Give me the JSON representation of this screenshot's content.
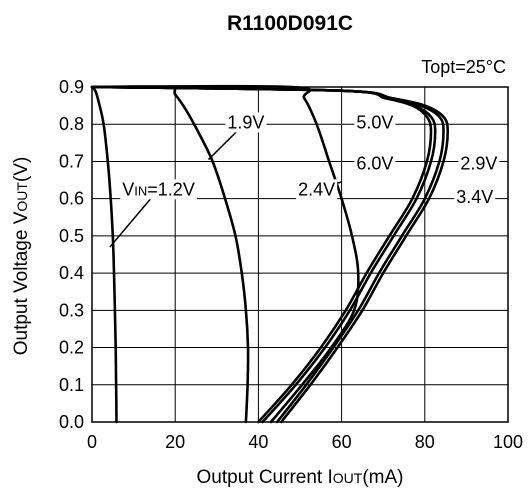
{
  "chart_data": {
    "type": "line",
    "title": "R1100D091C",
    "annotation": "Topt=25°C",
    "xlabel": {
      "main": "Output Current I",
      "sub": "OUT",
      "tail": "(mA)"
    },
    "ylabel": {
      "main": "Output Voltage V",
      "sub": "OUT",
      "tail": "(V)"
    },
    "xlim": [
      0,
      100
    ],
    "ylim": [
      0,
      0.9
    ],
    "xticks": [
      "0",
      "20",
      "40",
      "60",
      "80",
      "100"
    ],
    "yticks": [
      "0.0",
      "0.1",
      "0.2",
      "0.3",
      "0.4",
      "0.5",
      "0.6",
      "0.7",
      "0.8",
      "0.9"
    ],
    "grid": true,
    "series": [
      {
        "name": "VIN=1.2V",
        "label_main": "V",
        "label_sub": "IN",
        "label_tail": "=1.2V",
        "points": [
          [
            0,
            0.9
          ],
          [
            0.8,
            0.89
          ],
          [
            1.6,
            0.86
          ],
          [
            2.8,
            0.8
          ],
          [
            3.8,
            0.7
          ],
          [
            4.5,
            0.6
          ],
          [
            5.0,
            0.5
          ],
          [
            5.3,
            0.4
          ],
          [
            5.5,
            0.3
          ],
          [
            5.7,
            0.2
          ],
          [
            5.8,
            0.1
          ],
          [
            5.9,
            0.0
          ]
        ]
      },
      {
        "name": "1.9V",
        "points": [
          [
            0,
            0.9
          ],
          [
            18,
            0.9
          ],
          [
            20,
            0.88
          ],
          [
            22.5,
            0.84
          ],
          [
            25.5,
            0.78
          ],
          [
            29,
            0.7
          ],
          [
            32,
            0.6
          ],
          [
            34.5,
            0.5
          ],
          [
            36,
            0.4
          ],
          [
            37,
            0.3
          ],
          [
            37.5,
            0.2
          ],
          [
            37.4,
            0.1
          ],
          [
            37.0,
            0.0
          ]
        ]
      },
      {
        "name": "2.4V",
        "points": [
          [
            0,
            0.9
          ],
          [
            48,
            0.9
          ],
          [
            51,
            0.87
          ],
          [
            54,
            0.8
          ],
          [
            57,
            0.7
          ],
          [
            60,
            0.6
          ],
          [
            62.5,
            0.5
          ],
          [
            64,
            0.4
          ],
          [
            63,
            0.3
          ],
          [
            57.5,
            0.2
          ],
          [
            50.5,
            0.1
          ],
          [
            43,
            0.0
          ]
        ]
      },
      {
        "name": "2.9V",
        "points": [
          [
            0,
            0.9
          ],
          [
            60,
            0.89
          ],
          [
            72,
            0.87
          ],
          [
            79,
            0.85
          ],
          [
            83.5,
            0.82
          ],
          [
            84.5,
            0.78
          ],
          [
            83.5,
            0.7
          ],
          [
            80,
            0.6
          ],
          [
            74.5,
            0.5
          ],
          [
            69,
            0.4
          ],
          [
            64,
            0.3
          ],
          [
            58,
            0.2
          ],
          [
            51.5,
            0.1
          ],
          [
            44.5,
            0.0
          ]
        ]
      },
      {
        "name": "3.4V",
        "points": [
          [
            0,
            0.9
          ],
          [
            60,
            0.89
          ],
          [
            72,
            0.87
          ],
          [
            80,
            0.85
          ],
          [
            84.5,
            0.82
          ],
          [
            85.5,
            0.78
          ],
          [
            84.5,
            0.7
          ],
          [
            81,
            0.6
          ],
          [
            75.5,
            0.5
          ],
          [
            70,
            0.4
          ],
          [
            65,
            0.3
          ],
          [
            59,
            0.2
          ],
          [
            52.5,
            0.1
          ],
          [
            45.5,
            0.0
          ]
        ]
      },
      {
        "name": "5.0V",
        "points": [
          [
            0,
            0.9
          ],
          [
            60,
            0.89
          ],
          [
            71,
            0.87
          ],
          [
            77.5,
            0.85
          ],
          [
            81.5,
            0.82
          ],
          [
            82.5,
            0.78
          ],
          [
            81.5,
            0.7
          ],
          [
            78,
            0.6
          ],
          [
            72.5,
            0.5
          ],
          [
            67,
            0.4
          ],
          [
            62,
            0.3
          ],
          [
            56,
            0.2
          ],
          [
            49,
            0.1
          ],
          [
            41,
            0.0
          ]
        ]
      },
      {
        "name": "6.0V",
        "points": [
          [
            0,
            0.9
          ],
          [
            60,
            0.89
          ],
          [
            70.5,
            0.87
          ],
          [
            77,
            0.85
          ],
          [
            80.5,
            0.82
          ],
          [
            81.5,
            0.78
          ],
          [
            80.5,
            0.7
          ],
          [
            77,
            0.6
          ],
          [
            71.5,
            0.5
          ],
          [
            66,
            0.4
          ],
          [
            61,
            0.3
          ],
          [
            55,
            0.2
          ],
          [
            48,
            0.1
          ],
          [
            40,
            0.0
          ]
        ]
      }
    ],
    "labels": [
      {
        "series": "VIN=1.2V",
        "text_main": "V",
        "text_sub": "IN",
        "text_tail": "=1.2V",
        "x": 16,
        "y": 0.625,
        "lead_to": [
          4.3,
          0.47
        ]
      },
      {
        "series": "1.9V",
        "text": "1.9V",
        "x": 37,
        "y": 0.805,
        "lead_to": [
          28,
          0.705
        ]
      },
      {
        "series": "2.4V",
        "text": "2.4V",
        "x": 54,
        "y": 0.625,
        "lead_to": [
          60,
          0.645
        ]
      },
      {
        "series": "5.0V",
        "text": "5.0V",
        "x": 68,
        "y": 0.805
      },
      {
        "series": "6.0V",
        "text": "6.0V",
        "x": 68,
        "y": 0.695
      },
      {
        "series": "2.9V",
        "text": "2.9V",
        "x": 93,
        "y": 0.695
      },
      {
        "series": "3.4V",
        "text": "3.4V",
        "x": 92,
        "y": 0.605
      }
    ]
  }
}
